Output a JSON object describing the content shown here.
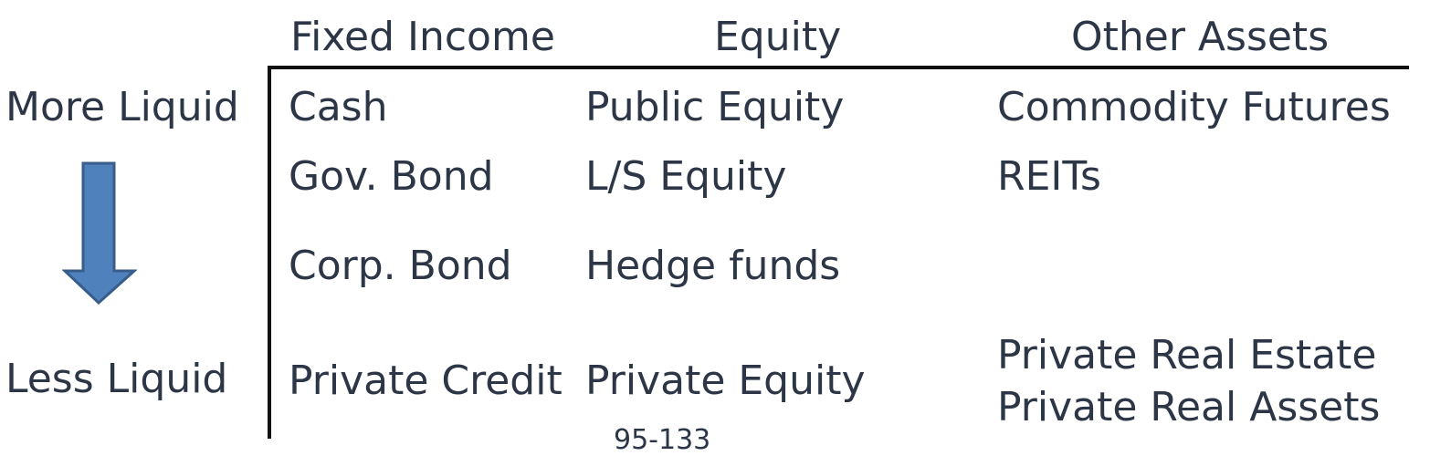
{
  "headers": {
    "fixed_income": "Fixed Income",
    "equity": "Equity",
    "other_assets": "Other Assets"
  },
  "side": {
    "more_liquid": "More Liquid",
    "less_liquid": "Less Liquid"
  },
  "rows": [
    {
      "fixed_income": "Cash",
      "equity": "Public Equity",
      "other": "Commodity Futures"
    },
    {
      "fixed_income": "Gov. Bond",
      "equity": "L/S Equity",
      "other": "REITs"
    },
    {
      "fixed_income": "Corp. Bond",
      "equity": "Hedge funds",
      "other": ""
    },
    {
      "fixed_income": "Private Credit",
      "equity": "Private Equity",
      "other": "Private Real Estate",
      "other2": "Private Real Assets"
    }
  ],
  "footer_text": "95-133",
  "colors": {
    "arrow_fill": "#4f81bd",
    "arrow_stroke": "#385d8a",
    "text": "#2c3646",
    "rule": "#111111"
  }
}
